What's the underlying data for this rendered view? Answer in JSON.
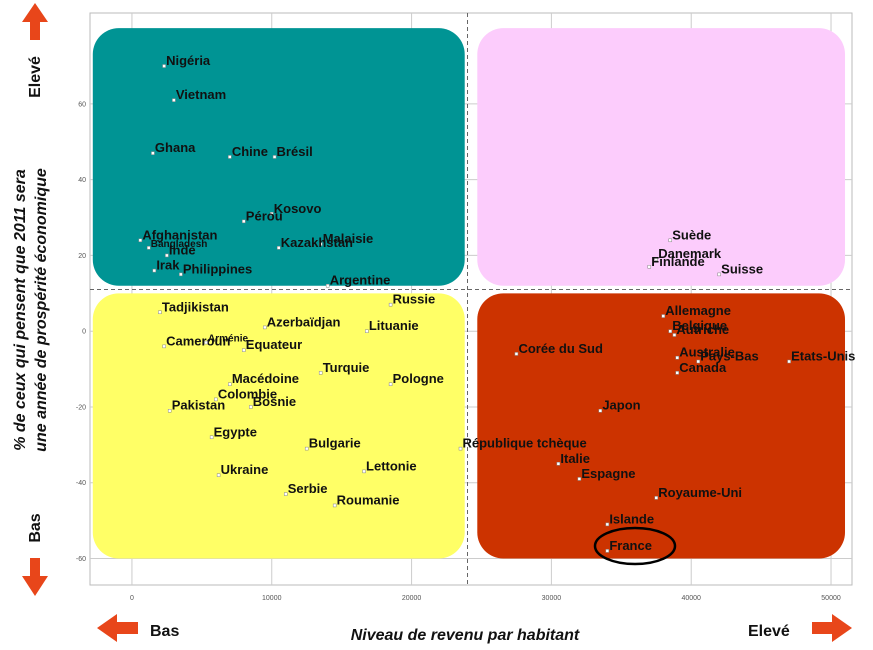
{
  "chart_data": {
    "type": "scatter",
    "xlabel": "Niveau de revenu par habitant",
    "ylabel_line1": "% de ceux qui pensent que 2011 sera",
    "ylabel_line2": "une année de prospérité économique",
    "xlim": [
      -3000,
      51500
    ],
    "ylim": [
      -67,
      84
    ],
    "x_ticks": [
      0,
      10000,
      20000,
      30000,
      40000,
      50000
    ],
    "y_ticks": [
      -60,
      -40,
      -20,
      0,
      20,
      40,
      60
    ],
    "grid": true,
    "divider_x": 24000,
    "divider_y": 11,
    "quadrants": [
      {
        "x0": -2800,
        "x1": 23800,
        "y0": 12,
        "y1": 80,
        "color": "#009494"
      },
      {
        "x0": 24700,
        "x1": 51000,
        "y0": 12,
        "y1": 80,
        "color": "#FCCCFC"
      },
      {
        "x0": -2800,
        "x1": 23800,
        "y0": -60,
        "y1": 10,
        "color": "#FFFF66"
      },
      {
        "x0": 24700,
        "x1": 51000,
        "y0": -60,
        "y1": 10,
        "color": "#CC3300"
      }
    ],
    "points": [
      {
        "label": "Nigéria",
        "x": 2300,
        "y": 70
      },
      {
        "label": "Vietnam",
        "x": 3000,
        "y": 61
      },
      {
        "label": "Ghana",
        "x": 1500,
        "y": 47
      },
      {
        "label": "Chine",
        "x": 7000,
        "y": 46
      },
      {
        "label": "Brésil",
        "x": 10200,
        "y": 46
      },
      {
        "label": "Kosovo",
        "x": 10000,
        "y": 31
      },
      {
        "label": "Pérou",
        "x": 8000,
        "y": 29
      },
      {
        "label": "Afghanistan",
        "x": 600,
        "y": 24
      },
      {
        "label": "Malaisie",
        "x": 13500,
        "y": 23
      },
      {
        "label": "Bangladesh",
        "x": 1200,
        "y": 22
      },
      {
        "label": "Inde",
        "x": 2500,
        "y": 20
      },
      {
        "label": "Kazakhstan",
        "x": 10500,
        "y": 22
      },
      {
        "label": "Irak",
        "x": 1600,
        "y": 16
      },
      {
        "label": "Philippines",
        "x": 3500,
        "y": 15
      },
      {
        "label": "Argentine",
        "x": 14000,
        "y": 12
      },
      {
        "label": "Tadjikistan",
        "x": 2000,
        "y": 5
      },
      {
        "label": "Russie",
        "x": 18500,
        "y": 7
      },
      {
        "label": "Azerbaïdjan",
        "x": 9500,
        "y": 1
      },
      {
        "label": "Cameroun",
        "x": 2300,
        "y": -4
      },
      {
        "label": "Arménie",
        "x": 5300,
        "y": -3
      },
      {
        "label": "Lituanie",
        "x": 16800,
        "y": 0
      },
      {
        "label": "Equateur",
        "x": 8000,
        "y": -5
      },
      {
        "label": "Turquie",
        "x": 13500,
        "y": -11
      },
      {
        "label": "Macédoine",
        "x": 7000,
        "y": -14
      },
      {
        "label": "Pologne",
        "x": 18500,
        "y": -14
      },
      {
        "label": "Colombie",
        "x": 6000,
        "y": -18
      },
      {
        "label": "Bosnie",
        "x": 8500,
        "y": -20
      },
      {
        "label": "Pakistan",
        "x": 2700,
        "y": -21
      },
      {
        "label": "Egypte",
        "x": 5700,
        "y": -28
      },
      {
        "label": "Bulgarie",
        "x": 12500,
        "y": -31
      },
      {
        "label": "République tchèque",
        "x": 23500,
        "y": -31
      },
      {
        "label": "Ukraine",
        "x": 6200,
        "y": -38
      },
      {
        "label": "Lettonie",
        "x": 16600,
        "y": -37
      },
      {
        "label": "Serbie",
        "x": 11000,
        "y": -43
      },
      {
        "label": "Roumanie",
        "x": 14500,
        "y": -46
      },
      {
        "label": "Suède",
        "x": 38500,
        "y": 24
      },
      {
        "label": "Danemark",
        "x": 37500,
        "y": 19
      },
      {
        "label": "Finlande",
        "x": 37000,
        "y": 17
      },
      {
        "label": "Suisse",
        "x": 42000,
        "y": 15
      },
      {
        "label": "Allemagne",
        "x": 38000,
        "y": 4
      },
      {
        "label": "Belgique",
        "x": 38500,
        "y": 0
      },
      {
        "label": "Autriche",
        "x": 38800,
        "y": -1
      },
      {
        "label": "Corée du Sud",
        "x": 27500,
        "y": -6
      },
      {
        "label": "Australie",
        "x": 39000,
        "y": -7
      },
      {
        "label": "Pays-Bas",
        "x": 40500,
        "y": -8
      },
      {
        "label": "Etats-Unis",
        "x": 47000,
        "y": -8
      },
      {
        "label": "Canada",
        "x": 39000,
        "y": -11
      },
      {
        "label": "Japon",
        "x": 33500,
        "y": -21
      },
      {
        "label": "Italie",
        "x": 30500,
        "y": -35
      },
      {
        "label": "Espagne",
        "x": 32000,
        "y": -39
      },
      {
        "label": "Royaume-Uni",
        "x": 37500,
        "y": -44
      },
      {
        "label": "Islande",
        "x": 34000,
        "y": -51
      },
      {
        "label": "France",
        "x": 34000,
        "y": -58
      }
    ]
  },
  "side_labels": {
    "top_left": "Elevé",
    "bottom_left": "Bas",
    "bottom_x_left": "Bas",
    "bottom_x_right": "Elevé"
  },
  "colors": {
    "arrow": "#E8461A",
    "teal": "#009494",
    "pink": "#FCCCFC",
    "yellow": "#FFFF66",
    "red": "#CC3300"
  }
}
